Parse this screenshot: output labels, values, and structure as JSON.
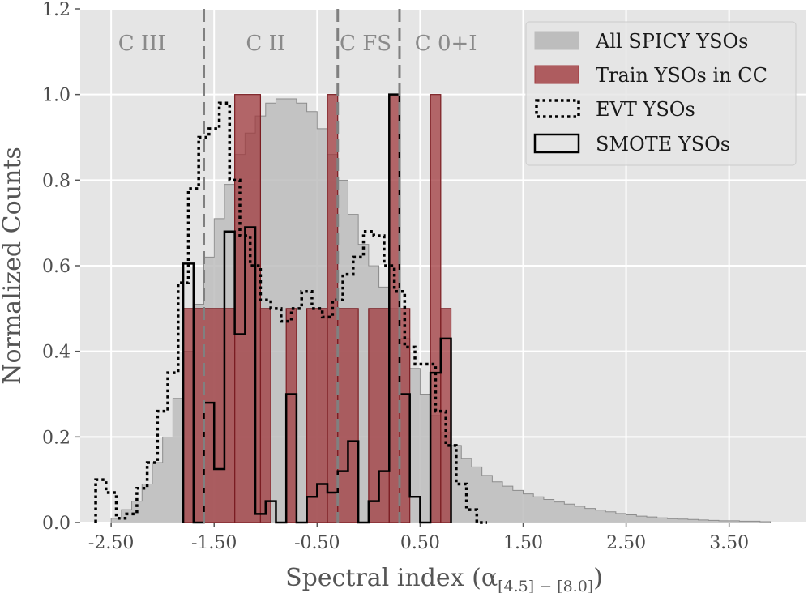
{
  "chart_data": {
    "type": "histogram",
    "xlabel_main": "Spectral index (α",
    "xlabel_sub": "[4.5] − [8.0]",
    "xlabel_close": ")",
    "ylabel": "Normalized Counts",
    "xlim": [
      -2.8,
      4.25
    ],
    "ylim": [
      0,
      1.2
    ],
    "x_ticks": [
      -2.5,
      -1.5,
      -0.5,
      0.5,
      1.5,
      2.5,
      3.5
    ],
    "x_tick_labels": [
      "-2.50",
      "-1.50",
      "-0.50",
      "0.50",
      "1.50",
      "2.50",
      "3.50"
    ],
    "y_ticks": [
      0,
      0.2,
      0.4,
      0.6,
      0.8,
      1.0,
      1.2
    ],
    "y_tick_labels": [
      "0.0",
      "0.2",
      "0.4",
      "0.6",
      "0.8",
      "1.0",
      "1.2"
    ],
    "grid": true,
    "background": "#e5e5e5",
    "class_boundaries": [
      -1.6,
      -0.3,
      0.3
    ],
    "class_labels": [
      {
        "text": "C III",
        "x": -2.2
      },
      {
        "text": "C II",
        "x": -1.0
      },
      {
        "text": "C FS",
        "x": -0.03
      },
      {
        "text": "C 0+I",
        "x": 0.75
      }
    ],
    "legend": {
      "placement": "upper right",
      "entries": [
        {
          "label": "All SPICY YSOs",
          "style": "gray-fill"
        },
        {
          "label": "Train YSOs in CC",
          "style": "red-fill"
        },
        {
          "label": "EVT YSOs",
          "style": "dotted"
        },
        {
          "label": "SMOTE YSOs",
          "style": "black-step"
        }
      ]
    },
    "colors": {
      "all_spicy_fill": "#bdbdbd",
      "all_spicy_edge": "#8c8c8c",
      "train_fill": "#a0393d",
      "train_edge": "#7a1d22",
      "evt": "#000000",
      "smote": "#000000",
      "boundary": "#808080"
    },
    "series": [
      {
        "name": "All SPICY YSOs",
        "kind": "filled-step",
        "x": [
          -2.45,
          -2.35,
          -2.25,
          -2.15,
          -2.05,
          -1.95,
          -1.85,
          -1.75,
          -1.65,
          -1.55,
          -1.45,
          -1.35,
          -1.25,
          -1.15,
          -1.05,
          -0.95,
          -0.85,
          -0.75,
          -0.65,
          -0.55,
          -0.45,
          -0.35,
          -0.25,
          -0.15,
          -0.05,
          0.05,
          0.15,
          0.25,
          0.35,
          0.45,
          0.55,
          0.65,
          0.75,
          0.85,
          0.95,
          1.05,
          1.15,
          1.25,
          1.35,
          1.45,
          1.55,
          1.65,
          1.75,
          1.85,
          1.95,
          2.05,
          2.15,
          2.25,
          2.35,
          2.45,
          2.55,
          2.65,
          2.75,
          2.85,
          2.95,
          3.05,
          3.15,
          3.25,
          3.35,
          3.45,
          3.55,
          3.65,
          3.75,
          3.85
        ],
        "y": [
          0.01,
          0.03,
          0.05,
          0.09,
          0.14,
          0.2,
          0.29,
          0.4,
          0.51,
          0.62,
          0.71,
          0.79,
          0.86,
          0.91,
          0.95,
          0.98,
          0.99,
          0.99,
          0.98,
          0.96,
          0.92,
          0.86,
          0.8,
          0.72,
          0.65,
          0.6,
          0.55,
          0.5,
          0.43,
          0.36,
          0.3,
          0.25,
          0.21,
          0.18,
          0.15,
          0.13,
          0.11,
          0.095,
          0.085,
          0.075,
          0.067,
          0.06,
          0.054,
          0.048,
          0.043,
          0.038,
          0.033,
          0.029,
          0.025,
          0.021,
          0.018,
          0.015,
          0.013,
          0.011,
          0.009,
          0.008,
          0.007,
          0.006,
          0.005,
          0.004,
          0.004,
          0.003,
          0.003,
          0.002
        ]
      },
      {
        "name": "Train YSOs in CC",
        "kind": "filled-bars",
        "bars": [
          {
            "x0": -1.8,
            "x1": -1.3,
            "y": 0.5
          },
          {
            "x0": -1.3,
            "x1": -1.05,
            "y": 1.0
          },
          {
            "x0": -1.05,
            "x1": -0.95,
            "y": 0.5
          },
          {
            "x0": -0.8,
            "x1": -0.7,
            "y": 0.5
          },
          {
            "x0": -0.6,
            "x1": -0.4,
            "y": 0.5
          },
          {
            "x0": -0.4,
            "x1": -0.3,
            "y": 1.0
          },
          {
            "x0": -0.3,
            "x1": -0.1,
            "y": 0.5
          },
          {
            "x0": 0.0,
            "x1": 0.2,
            "y": 0.5
          },
          {
            "x0": 0.2,
            "x1": 0.3,
            "y": 1.0
          },
          {
            "x0": 0.3,
            "x1": 0.4,
            "y": 0.5
          },
          {
            "x0": 0.6,
            "x1": 0.7,
            "y": 1.0
          },
          {
            "x0": 0.7,
            "x1": 0.8,
            "y": 0.5
          }
        ]
      },
      {
        "name": "EVT YSOs",
        "kind": "dotted-step",
        "x": [
          -2.6,
          -2.5,
          -2.4,
          -2.3,
          -2.2,
          -2.1,
          -2.0,
          -1.9,
          -1.8,
          -1.7,
          -1.6,
          -1.5,
          -1.4,
          -1.3,
          -1.2,
          -1.1,
          -1.0,
          -0.9,
          -0.8,
          -0.7,
          -0.6,
          -0.5,
          -0.4,
          -0.3,
          -0.2,
          -0.1,
          0.0,
          0.1,
          0.2,
          0.3,
          0.4,
          0.5,
          0.6,
          0.7,
          0.8,
          0.9,
          1.0,
          1.1
        ],
        "y": [
          0.1,
          0.07,
          0.01,
          0.02,
          0.08,
          0.14,
          0.26,
          0.35,
          0.56,
          0.78,
          0.9,
          0.92,
          0.98,
          0.8,
          0.67,
          0.6,
          0.52,
          0.5,
          0.47,
          0.5,
          0.54,
          0.5,
          0.48,
          0.52,
          0.58,
          0.62,
          0.68,
          0.67,
          0.6,
          0.54,
          0.41,
          0.37,
          0.37,
          0.26,
          0.18,
          0.09,
          0.03,
          0.0
        ]
      },
      {
        "name": "SMOTE YSOs",
        "kind": "line-step",
        "steps": [
          {
            "x0": -1.8,
            "x1": -1.7,
            "y": 0.605
          },
          {
            "x0": -1.7,
            "x1": -1.6,
            "y": 0.0
          },
          {
            "x0": -1.6,
            "x1": -1.5,
            "y": 0.28
          },
          {
            "x0": -1.5,
            "x1": -1.4,
            "y": 0.125
          },
          {
            "x0": -1.4,
            "x1": -1.3,
            "y": 0.68
          },
          {
            "x0": -1.3,
            "x1": -1.2,
            "y": 0.44
          },
          {
            "x0": -1.2,
            "x1": -1.1,
            "y": 0.69
          },
          {
            "x0": -1.1,
            "x1": -1.0,
            "y": 0.02
          },
          {
            "x0": -1.0,
            "x1": -0.9,
            "y": 0.05
          },
          {
            "x0": -0.9,
            "x1": -0.8,
            "y": 0.0
          },
          {
            "x0": -0.8,
            "x1": -0.7,
            "y": 0.3
          },
          {
            "x0": -0.7,
            "x1": -0.6,
            "y": 0.0
          },
          {
            "x0": -0.6,
            "x1": -0.5,
            "y": 0.06
          },
          {
            "x0": -0.5,
            "x1": -0.4,
            "y": 0.09
          },
          {
            "x0": -0.4,
            "x1": -0.3,
            "y": 0.07
          },
          {
            "x0": -0.3,
            "x1": -0.2,
            "y": 0.12
          },
          {
            "x0": -0.2,
            "x1": -0.1,
            "y": 0.19
          },
          {
            "x0": -0.1,
            "x1": 0.0,
            "y": 0.0
          },
          {
            "x0": 0.0,
            "x1": 0.1,
            "y": 0.05
          },
          {
            "x0": 0.1,
            "x1": 0.2,
            "y": 0.12
          },
          {
            "x0": 0.2,
            "x1": 0.3,
            "y": 1.0
          },
          {
            "x0": 0.3,
            "x1": 0.4,
            "y": 0.3
          },
          {
            "x0": 0.4,
            "x1": 0.5,
            "y": 0.06
          },
          {
            "x0": 0.5,
            "x1": 0.6,
            "y": 0.0
          },
          {
            "x0": 0.6,
            "x1": 0.7,
            "y": 0.35
          },
          {
            "x0": 0.7,
            "x1": 0.8,
            "y": 0.43
          }
        ]
      }
    ]
  }
}
